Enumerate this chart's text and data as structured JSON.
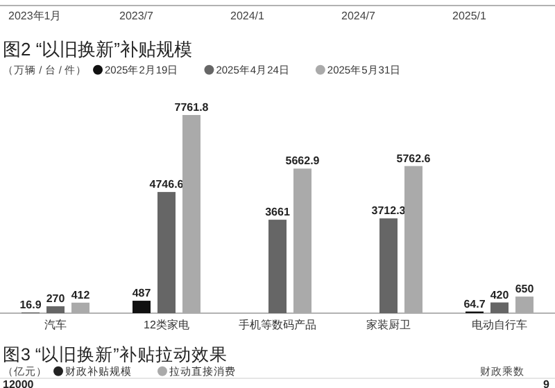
{
  "chart_data": [
    {
      "type": "other",
      "annotations": [
        "2023年1月",
        "2023/7",
        "2024/1",
        "2024/7",
        "2025/1"
      ]
    },
    {
      "type": "bar",
      "title": "图2 “以旧换新”补贴规模",
      "ylabel": "（万辆 / 台 / 件）",
      "categories": [
        "汽车",
        "12类家电",
        "手机等数码产品",
        "家装厨卫",
        "电动自行车"
      ],
      "data_labels": true,
      "legend": "top left",
      "series": [
        {
          "name": "2025年2月19日",
          "color": "#111111",
          "values": [
            16.9,
            487,
            null,
            null,
            64.7
          ]
        },
        {
          "name": "2025年4月24日",
          "color": "#666666",
          "values": [
            270,
            4746.6,
            3661,
            3712.3,
            420
          ]
        },
        {
          "name": "2025年5月31日",
          "color": "#aaaaaa",
          "values": [
            412,
            7761.8,
            5662.9,
            5762.6,
            650
          ]
        }
      ]
    },
    {
      "type": "other",
      "title": "图3 “以旧换新”补贴拉动效果",
      "ylabel": "（亿元）",
      "y2label": "财政乘数",
      "legend": "top left",
      "series": [
        {
          "name": "财政补贴规模",
          "color": "#222222"
        },
        {
          "name": "拉动直接消费",
          "color": "#aaaaaa"
        }
      ],
      "annotations": [
        "12000",
        "9"
      ]
    }
  ]
}
